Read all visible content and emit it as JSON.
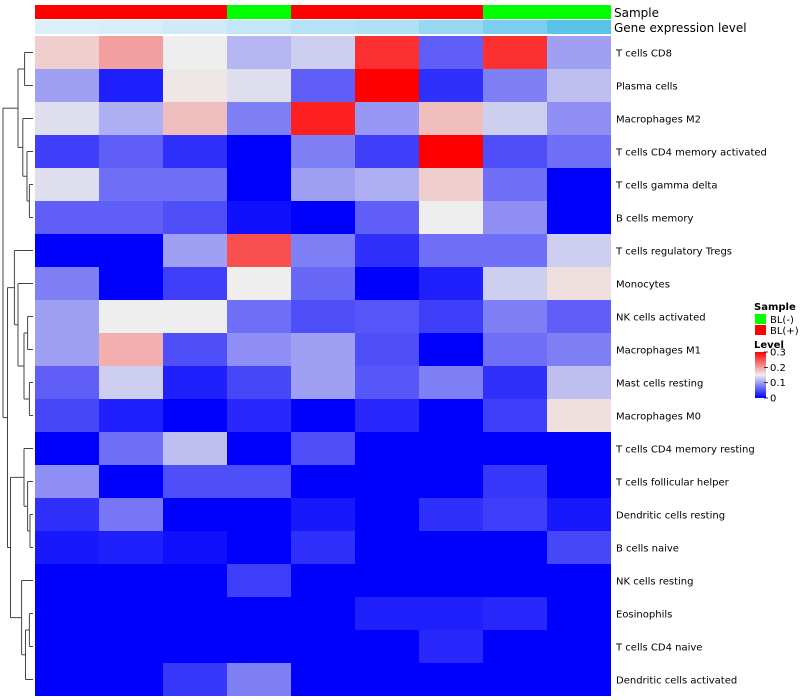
{
  "chart_data": {
    "type": "heatmap",
    "annotation_rows": [
      {
        "label": "Sample",
        "values": [
          "BL(+)",
          "BL(+)",
          "BL(+)",
          "BL(-)",
          "BL(+)",
          "BL(+)",
          "BL(+)",
          "BL(-)",
          "BL(-)"
        ]
      },
      {
        "label": "Gene expression level",
        "values": [
          0.02,
          0.05,
          0.1,
          0.2,
          0.3,
          0.35,
          0.55,
          0.75,
          1.0
        ]
      }
    ],
    "rows": [
      "T cells CD8",
      "Plasma cells",
      "Macrophages M2",
      "T cells CD4 memory activated",
      "T cells gamma delta",
      "B cells memory",
      "T cells regulatory  Tregs",
      "Monocytes",
      "NK cells activated",
      "Macrophages M1",
      "Mast cells resting",
      "Macrophages M0",
      "T cells CD4 memory resting",
      "T cells follicular helper",
      "Dendritic cells resting",
      "B cells naive",
      "NK cells resting",
      "Eosinophils",
      "T cells CD4 naive",
      "Dendritic cells activated"
    ],
    "values": [
      [
        0.17,
        0.2,
        0.15,
        0.115,
        0.13,
        0.27,
        0.06,
        0.27,
        0.1
      ],
      [
        0.1,
        0.02,
        0.155,
        0.14,
        0.06,
        0.3,
        0.03,
        0.08,
        0.12
      ],
      [
        0.14,
        0.11,
        0.18,
        0.08,
        0.28,
        0.095,
        0.18,
        0.13,
        0.09
      ],
      [
        0.04,
        0.06,
        0.03,
        0.0,
        0.08,
        0.04,
        0.3,
        0.05,
        0.07
      ],
      [
        0.14,
        0.07,
        0.07,
        0.0,
        0.1,
        0.11,
        0.17,
        0.07,
        0.0
      ],
      [
        0.06,
        0.06,
        0.05,
        0.01,
        0.0,
        0.06,
        0.15,
        0.09,
        0.0
      ],
      [
        0.0,
        0.0,
        0.1,
        0.25,
        0.08,
        0.03,
        0.07,
        0.07,
        0.13
      ],
      [
        0.08,
        0.0,
        0.04,
        0.15,
        0.065,
        0.0,
        0.02,
        0.13,
        0.16
      ],
      [
        0.1,
        0.15,
        0.15,
        0.07,
        0.05,
        0.055,
        0.04,
        0.08,
        0.06
      ],
      [
        0.1,
        0.19,
        0.05,
        0.09,
        0.1,
        0.05,
        0.0,
        0.07,
        0.08
      ],
      [
        0.06,
        0.13,
        0.02,
        0.045,
        0.1,
        0.055,
        0.08,
        0.03,
        0.12
      ],
      [
        0.045,
        0.02,
        0.0,
        0.025,
        0.0,
        0.025,
        0.0,
        0.04,
        0.16
      ],
      [
        0.0,
        0.07,
        0.12,
        0.0,
        0.05,
        0.0,
        0.0,
        0.0,
        0.0
      ],
      [
        0.09,
        0.0,
        0.05,
        0.05,
        0.0,
        0.0,
        0.0,
        0.035,
        0.0
      ],
      [
        0.03,
        0.075,
        0.0,
        0.0,
        0.015,
        0.0,
        0.03,
        0.04,
        0.015
      ],
      [
        0.015,
        0.02,
        0.01,
        0.0,
        0.03,
        0.0,
        0.0,
        0.0,
        0.045
      ],
      [
        0.0,
        0.0,
        0.0,
        0.04,
        0.0,
        0.0,
        0.0,
        0.0,
        0.0
      ],
      [
        0.0,
        0.0,
        0.0,
        0.0,
        0.0,
        0.02,
        0.02,
        0.025,
        0.0
      ],
      [
        0.0,
        0.0,
        0.0,
        0.0,
        0.0,
        0.0,
        0.025,
        0.0,
        0.0
      ],
      [
        0.0,
        0.0,
        0.035,
        0.08,
        0.0,
        0.0,
        0.0,
        0.0,
        0.0
      ]
    ],
    "color_scale": {
      "low": "#0000FF",
      "mid": "#EEEEEE",
      "high": "#FF0000",
      "min": 0,
      "mid_value": 0.15,
      "max": 0.3
    },
    "legend": {
      "sample_title": "Sample",
      "sample_items": [
        {
          "label": "BL(-)",
          "color": "#00FF00"
        },
        {
          "label": "BL(+)",
          "color": "#FF0000"
        }
      ],
      "level_title": "Level",
      "level_ticks": [
        "0.3",
        "0.2",
        "0.1",
        "0"
      ],
      "level_tick_values": [
        0.3,
        0.2,
        0.1,
        0
      ]
    },
    "sample_colors": {
      "BL(-)": "#00FF00",
      "BL(+)": "#FF0000"
    },
    "gene_expression_colors": {
      "low": "#DDF0FA",
      "high": "#5BC2EA"
    },
    "dendrogram": "rows",
    "grid": false
  }
}
